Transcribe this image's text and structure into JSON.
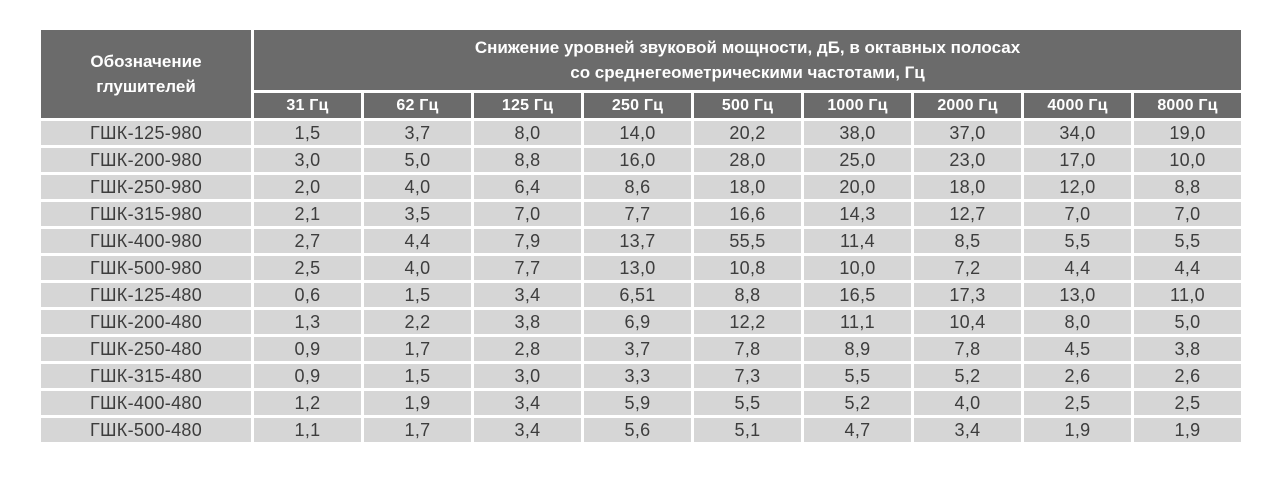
{
  "table": {
    "designation_header": {
      "line1": "Обозначение",
      "line2": "глушителей"
    },
    "main_header": {
      "line1": "Снижение уровней звуковой мощности, дБ, в октавных полосах",
      "line2": "со среднегеометрическими частотами, Гц"
    },
    "frequencies": [
      "31 Гц",
      "62 Гц",
      "125 Гц",
      "250 Гц",
      "500 Гц",
      "1000 Гц",
      "2000 Гц",
      "4000 Гц",
      "8000 Гц"
    ],
    "rows": [
      {
        "name": "ГШК-125-980",
        "values": [
          "1,5",
          "3,7",
          "8,0",
          "14,0",
          "20,2",
          "38,0",
          "37,0",
          "34,0",
          "19,0"
        ]
      },
      {
        "name": "ГШК-200-980",
        "values": [
          "3,0",
          "5,0",
          "8,8",
          "16,0",
          "28,0",
          "25,0",
          "23,0",
          "17,0",
          "10,0"
        ]
      },
      {
        "name": "ГШК-250-980",
        "values": [
          "2,0",
          "4,0",
          "6,4",
          "8,6",
          "18,0",
          "20,0",
          "18,0",
          "12,0",
          "8,8"
        ]
      },
      {
        "name": "ГШК-315-980",
        "values": [
          "2,1",
          "3,5",
          "7,0",
          "7,7",
          "16,6",
          "14,3",
          "12,7",
          "7,0",
          "7,0"
        ]
      },
      {
        "name": "ГШК-400-980",
        "values": [
          "2,7",
          "4,4",
          "7,9",
          "13,7",
          "55,5",
          "11,4",
          "8,5",
          "5,5",
          "5,5"
        ]
      },
      {
        "name": "ГШК-500-980",
        "values": [
          "2,5",
          "4,0",
          "7,7",
          "13,0",
          "10,8",
          "10,0",
          "7,2",
          "4,4",
          "4,4"
        ]
      },
      {
        "name": "ГШК-125-480",
        "values": [
          "0,6",
          "1,5",
          "3,4",
          "6,51",
          "8,8",
          "16,5",
          "17,3",
          "13,0",
          "11,0"
        ]
      },
      {
        "name": "ГШК-200-480",
        "values": [
          "1,3",
          "2,2",
          "3,8",
          "6,9",
          "12,2",
          "11,1",
          "10,4",
          "8,0",
          "5,0"
        ]
      },
      {
        "name": "ГШК-250-480",
        "values": [
          "0,9",
          "1,7",
          "2,8",
          "3,7",
          "7,8",
          "8,9",
          "7,8",
          "4,5",
          "3,8"
        ]
      },
      {
        "name": "ГШК-315-480",
        "values": [
          "0,9",
          "1,5",
          "3,0",
          "3,3",
          "7,3",
          "5,5",
          "5,2",
          "2,6",
          "2,6"
        ]
      },
      {
        "name": "ГШК-400-480",
        "values": [
          "1,2",
          "1,9",
          "3,4",
          "5,9",
          "5,5",
          "5,2",
          "4,0",
          "2,5",
          "2,5"
        ]
      },
      {
        "name": "ГШК-500-480",
        "values": [
          "1,1",
          "1,7",
          "3,4",
          "5,6",
          "5,1",
          "4,7",
          "3,4",
          "1,9",
          "1,9"
        ]
      }
    ],
    "colors": {
      "header_bg": "#6b6b6b",
      "header_text": "#ffffff",
      "cell_bg": "#d6d6d6",
      "cell_text": "#3d3d3d",
      "page_bg": "#ffffff"
    }
  }
}
